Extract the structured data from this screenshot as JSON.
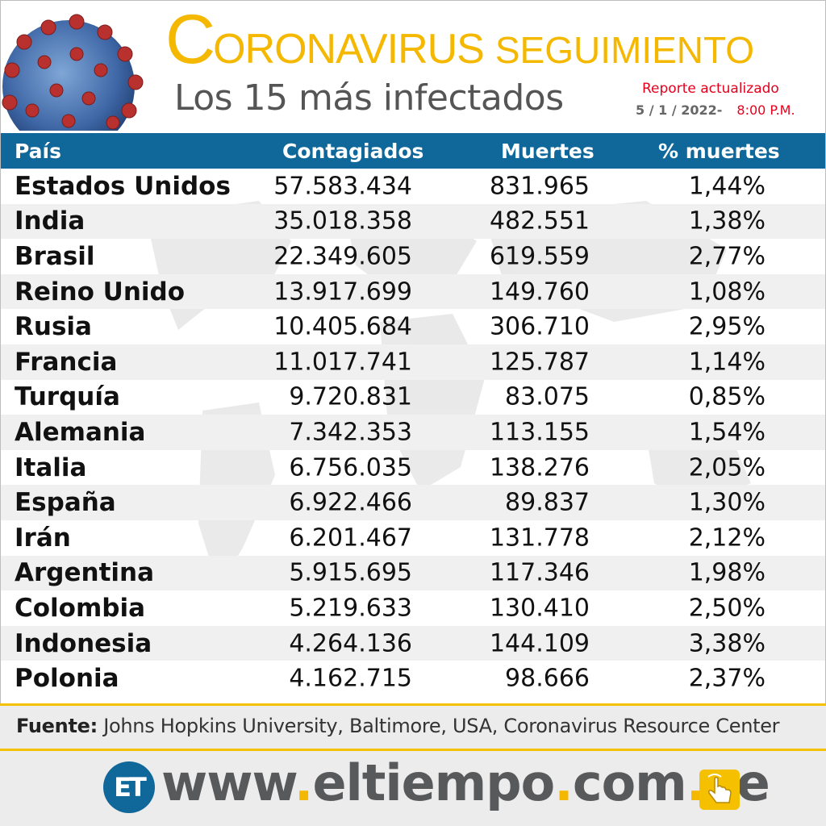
{
  "header": {
    "title_initial": "C",
    "title_rest": "ORONAVIRUS",
    "title_sub": "SEGUIMIENTO",
    "subtitle": "Los 15 más infectados",
    "report_label": "Reporte actualizado",
    "report_date": "5 / 1 / 2022-",
    "report_time": "8:00 P.M."
  },
  "table": {
    "columns": [
      "País",
      "Contagiados",
      "Muertes",
      "% muertes"
    ],
    "rows": [
      {
        "country": "Estados Unidos",
        "cases": "57.583.434",
        "deaths": "831.965",
        "pct": "1,44%"
      },
      {
        "country": "India",
        "cases": "35.018.358",
        "deaths": "482.551",
        "pct": "1,38%"
      },
      {
        "country": "Brasil",
        "cases": "22.349.605",
        "deaths": "619.559",
        "pct": "2,77%"
      },
      {
        "country": "Reino Unido",
        "cases": "13.917.699",
        "deaths": "149.760",
        "pct": "1,08%"
      },
      {
        "country": "Rusia",
        "cases": "10.405.684",
        "deaths": "306.710",
        "pct": "2,95%"
      },
      {
        "country": "Francia",
        "cases": "11.017.741",
        "deaths": "125.787",
        "pct": "1,14%"
      },
      {
        "country": "Turquía",
        "cases": "9.720.831",
        "deaths": "83.075",
        "pct": "0,85%"
      },
      {
        "country": "Alemania",
        "cases": "7.342.353",
        "deaths": "113.155",
        "pct": "1,54%"
      },
      {
        "country": "Italia",
        "cases": "6.756.035",
        "deaths": "138.276",
        "pct": "2,05%"
      },
      {
        "country": "España",
        "cases": "6.922.466",
        "deaths": "89.837",
        "pct": "1,30%"
      },
      {
        "country": "Irán",
        "cases": "6.201.467",
        "deaths": "131.778",
        "pct": "2,12%"
      },
      {
        "country": "Argentina",
        "cases": "5.915.695",
        "deaths": "117.346",
        "pct": "1,98%"
      },
      {
        "country": "Colombia",
        "cases": "5.219.633",
        "deaths": "130.410",
        "pct": "2,50%"
      },
      {
        "country": "Indonesia",
        "cases": "4.264.136",
        "deaths": "144.109",
        "pct": "3,38%"
      },
      {
        "country": "Polonia",
        "cases": "4.162.715",
        "deaths": "98.666",
        "pct": "2,37%"
      }
    ]
  },
  "footer": {
    "source_label": "Fuente:",
    "source_text": " Johns Hopkins University, Baltimore, USA, Coronavirus Resource Center",
    "logo_text": "ET",
    "site_parts": [
      "www",
      ".",
      "eltiempo",
      ".",
      "com",
      ".",
      "ve"
    ]
  },
  "icons": {
    "virus": "coronavirus-illustration",
    "hand": "pointing-hand-icon"
  },
  "colors": {
    "accent_yellow": "#f5b800",
    "header_blue": "#0f6899",
    "report_red": "#e5001c"
  }
}
